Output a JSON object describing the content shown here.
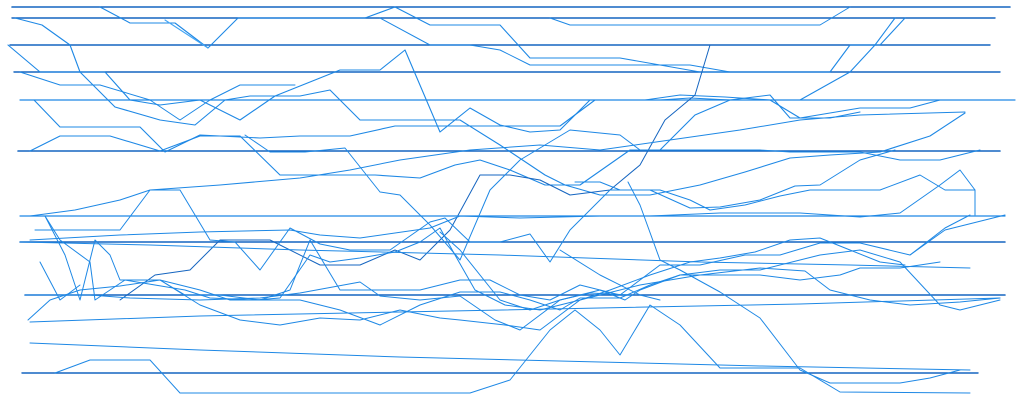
{
  "colors": {
    "background": "#ffffff",
    "stroke_primary": "#1565c0",
    "stroke_secondary": "#1e88e5",
    "stroke_light": "#42a5f5"
  }
}
